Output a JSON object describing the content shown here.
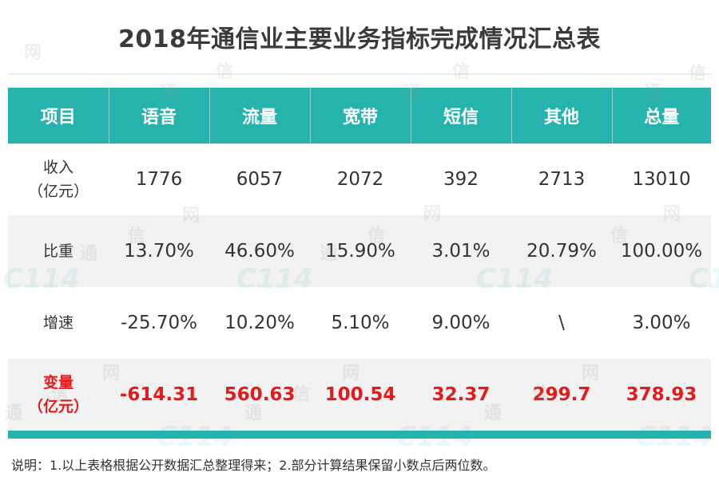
{
  "title": "2018年通信业主要业务指标完成情况汇总表",
  "table": {
    "headers": [
      "项目",
      "语音",
      "流量",
      "宽带",
      "短信",
      "其他",
      "总量"
    ],
    "rows": [
      {
        "label_line1": "收入",
        "label_line2": "（亿元）",
        "values": [
          "1776",
          "6057",
          "2072",
          "392",
          "2713",
          "13010"
        ]
      },
      {
        "label_line1": "比重",
        "label_line2": "",
        "values": [
          "13.70%",
          "46.60%",
          "15.90%",
          "3.01%",
          "20.79%",
          "100.00%"
        ]
      },
      {
        "label_line1": "增速",
        "label_line2": "",
        "values": [
          "-25.70%",
          "10.20%",
          "5.10%",
          "9.00%",
          "\\",
          "3.00%"
        ]
      },
      {
        "label_line1": "变量",
        "label_line2": "（亿元）",
        "values": [
          "-614.31",
          "560.63",
          "100.54",
          "32.37",
          "299.7",
          "378.93"
        ]
      }
    ]
  },
  "note": "说明：1.以上表格根据公开数据汇总整理得来；2.部分计算结果保留小数点后两位数。",
  "watermark": {
    "chars": [
      "网",
      "信",
      "通"
    ],
    "logo": "C114"
  },
  "colors": {
    "header_bg": "#27b3ad",
    "header_text": "#ffffff",
    "alt_row_bg": "#f2f2f2",
    "highlight_text": "#e8191a",
    "bottom_bar": "#27b3ad"
  }
}
